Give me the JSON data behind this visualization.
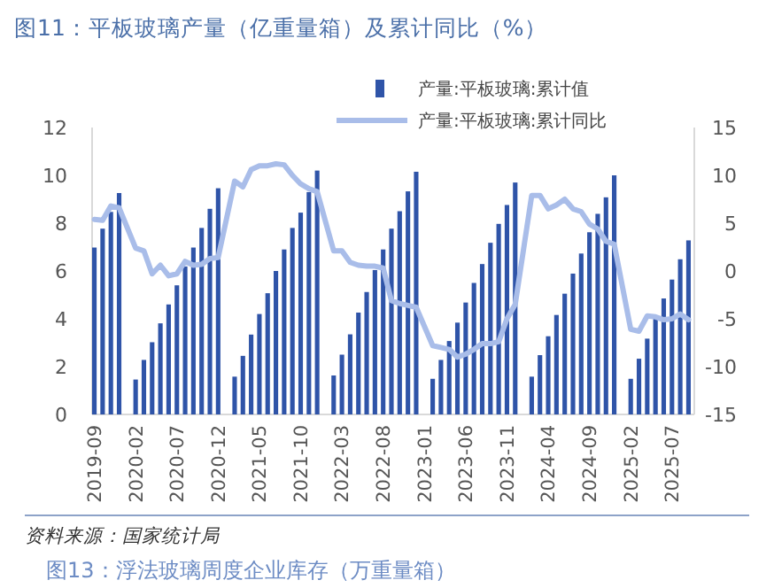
{
  "chart_data": {
    "type": "bar",
    "title": "图11：平板玻璃产量（亿重量箱）及累计同比（%）",
    "categories": [
      "2019-09",
      null,
      null,
      null,
      null,
      "2020-02",
      null,
      null,
      null,
      null,
      "2020-07",
      null,
      null,
      null,
      null,
      "2020-12",
      null,
      null,
      null,
      null,
      "2021-05",
      null,
      null,
      null,
      null,
      "2021-10",
      null,
      null,
      null,
      null,
      "2022-03",
      null,
      null,
      null,
      null,
      "2022-08",
      null,
      null,
      null,
      null,
      "2023-01",
      null,
      null,
      null,
      null,
      "2023-06",
      null,
      null,
      null,
      null,
      "2023-11",
      null,
      null,
      null,
      null,
      "2024-04",
      null,
      null,
      null,
      null,
      "2024-09",
      null,
      null,
      null,
      null,
      "2025-02",
      null,
      null,
      null,
      null,
      "2025-07",
      null,
      null
    ],
    "series": [
      {
        "name": "产量:平板玻璃:累计值",
        "color": "#2f54a8",
        "values": [
          6.98,
          7.77,
          8.47,
          9.26,
          null,
          1.46,
          2.28,
          3.02,
          3.81,
          4.6,
          5.4,
          6.19,
          6.98,
          7.8,
          8.6,
          9.46,
          null,
          1.58,
          2.45,
          3.34,
          4.2,
          5.07,
          6.0,
          6.9,
          7.8,
          8.44,
          9.3,
          10.2,
          null,
          1.63,
          2.5,
          3.35,
          4.26,
          5.12,
          6.04,
          6.9,
          7.77,
          8.5,
          9.33,
          10.15,
          null,
          1.49,
          2.28,
          3.07,
          3.84,
          4.68,
          5.5,
          6.29,
          7.18,
          7.97,
          8.76,
          9.7,
          null,
          1.58,
          2.48,
          3.27,
          4.16,
          5.05,
          5.89,
          6.73,
          7.62,
          8.39,
          9.08,
          10.0,
          null,
          1.49,
          2.33,
          3.17,
          4.01,
          4.85,
          5.64,
          6.49,
          7.28
        ]
      },
      {
        "name": "产量:平板玻璃:累计同比",
        "type": "line",
        "axis": "y2",
        "color": "#a9bde9",
        "values": [
          5.4,
          5.3,
          6.8,
          6.6,
          null,
          2.4,
          2.1,
          -0.3,
          0.6,
          -0.5,
          -0.3,
          1.0,
          0.6,
          0.7,
          1.3,
          1.4,
          null,
          9.4,
          8.8,
          10.6,
          11.0,
          11.0,
          11.2,
          11.1,
          10.0,
          9.1,
          8.6,
          8.3,
          null,
          2.1,
          2.1,
          0.9,
          0.6,
          0.5,
          0.5,
          0.3,
          -3.1,
          -3.4,
          -3.6,
          -3.8,
          null,
          -7.8,
          -8.0,
          -8.2,
          -9.0,
          -8.7,
          -8.2,
          -7.6,
          -7.6,
          -7.4,
          -5.0,
          -3.5,
          null,
          7.9,
          7.9,
          6.5,
          6.9,
          7.5,
          6.5,
          6.2,
          4.9,
          4.4,
          3.1,
          2.8,
          null,
          -6.1,
          -6.3,
          -4.7,
          -4.8,
          -5.1,
          -5.0,
          -4.5,
          -5.1
        ]
      }
    ],
    "ylim": [
      0,
      12
    ],
    "yticks": [
      0,
      2,
      4,
      6,
      8,
      10,
      12
    ],
    "y2lim": [
      -15,
      15
    ],
    "y2ticks": [
      -15,
      -10,
      -5,
      0,
      5,
      10,
      15
    ],
    "legend": "top right",
    "annotations": [
      "资料来源：国家统计局",
      "图13：浮法玻璃周度企业库存（万重量箱）"
    ]
  }
}
